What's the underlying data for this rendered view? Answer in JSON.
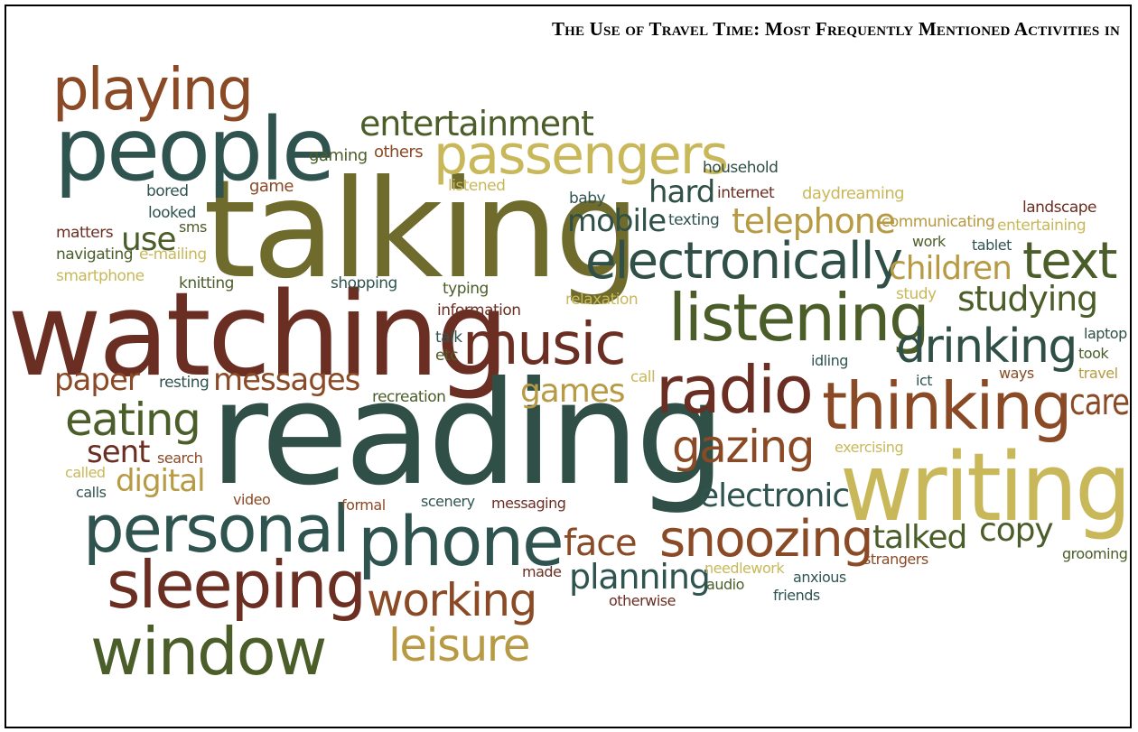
{
  "title": "The Use of Travel Time: Most Frequently Mentioned Activities in",
  "colors": {
    "teal": "#2f5450",
    "olive": "#6e6b2d",
    "maroon": "#6b2e22",
    "gold": "#c9b85a",
    "brown": "#8a4a26",
    "green": "#4b5e2a"
  },
  "words": [
    "playing",
    "people",
    "talking",
    "watching",
    "reading",
    "writing",
    "passengers",
    "entertainment",
    "electronically",
    "listening",
    "music",
    "radio",
    "thinking",
    "drinking",
    "text",
    "studying",
    "children",
    "telephone",
    "mobile",
    "hard",
    "personal",
    "sleeping",
    "window",
    "leisure",
    "working",
    "phone",
    "planning",
    "snoozing",
    "face",
    "gazing",
    "eating",
    "paper",
    "messages",
    "games",
    "digital",
    "sent",
    "copy",
    "talked",
    "electronic",
    "care",
    "gaming",
    "others",
    "household",
    "bored",
    "game",
    "listened",
    "baby",
    "internet",
    "daydreaming",
    "landscape",
    "looked",
    "sms",
    "use",
    "matters",
    "navigating",
    "e-mailing",
    "smartphone",
    "knitting",
    "shopping",
    "typing",
    "relaxation",
    "information",
    "texting",
    "communicating",
    "entertaining",
    "work",
    "tablet",
    "study",
    "talk",
    "etc",
    "resting",
    "recreation",
    "call",
    "idling",
    "ict",
    "ways",
    "laptop",
    "took",
    "travel",
    "search",
    "called",
    "calls",
    "video",
    "formal",
    "scenery",
    "messaging",
    "exercising",
    "needlework",
    "anxious",
    "strangers",
    "grooming",
    "made",
    "audio",
    "otherwise",
    "friends"
  ]
}
